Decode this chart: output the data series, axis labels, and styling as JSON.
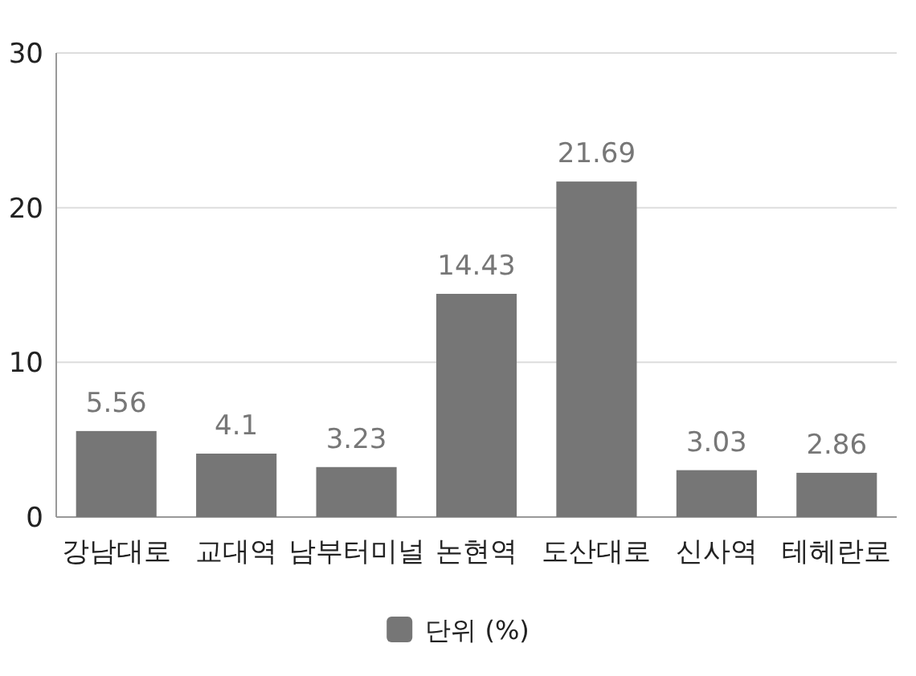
{
  "chart_data": {
    "type": "bar",
    "categories": [
      "강남대로",
      "교대역",
      "남부터미널",
      "논현역",
      "도산대로",
      "신사역",
      "테헤란로"
    ],
    "series": [
      {
        "name": "단위 (%)",
        "color": "#767676",
        "values": [
          5.56,
          4.1,
          3.23,
          14.43,
          21.69,
          3.03,
          2.86
        ]
      }
    ],
    "ylim": [
      0,
      30
    ],
    "yticks": [
      0,
      10,
      20,
      30
    ],
    "grid": "y",
    "legend": "bottom",
    "data_labels": true
  }
}
